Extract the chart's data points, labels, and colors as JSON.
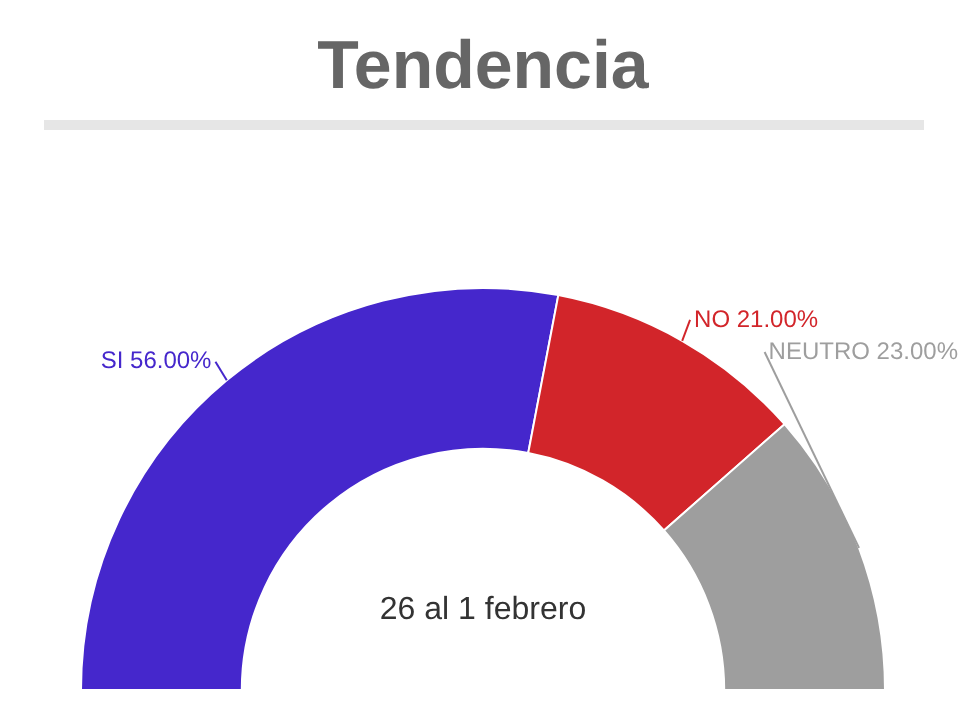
{
  "chart_data": {
    "type": "donut",
    "title": "Tendencia",
    "categories": [
      "SI",
      "NO",
      "NEUTRO"
    ],
    "values": [
      56,
      21,
      23
    ],
    "colors": [
      "#4527cc",
      "#d2252a",
      "#9e9e9e"
    ],
    "value_labels": [
      "56.00%",
      "21.00%",
      "23.00%"
    ],
    "annotations": [
      "26 al 1 febrero"
    ],
    "legend": false
  }
}
